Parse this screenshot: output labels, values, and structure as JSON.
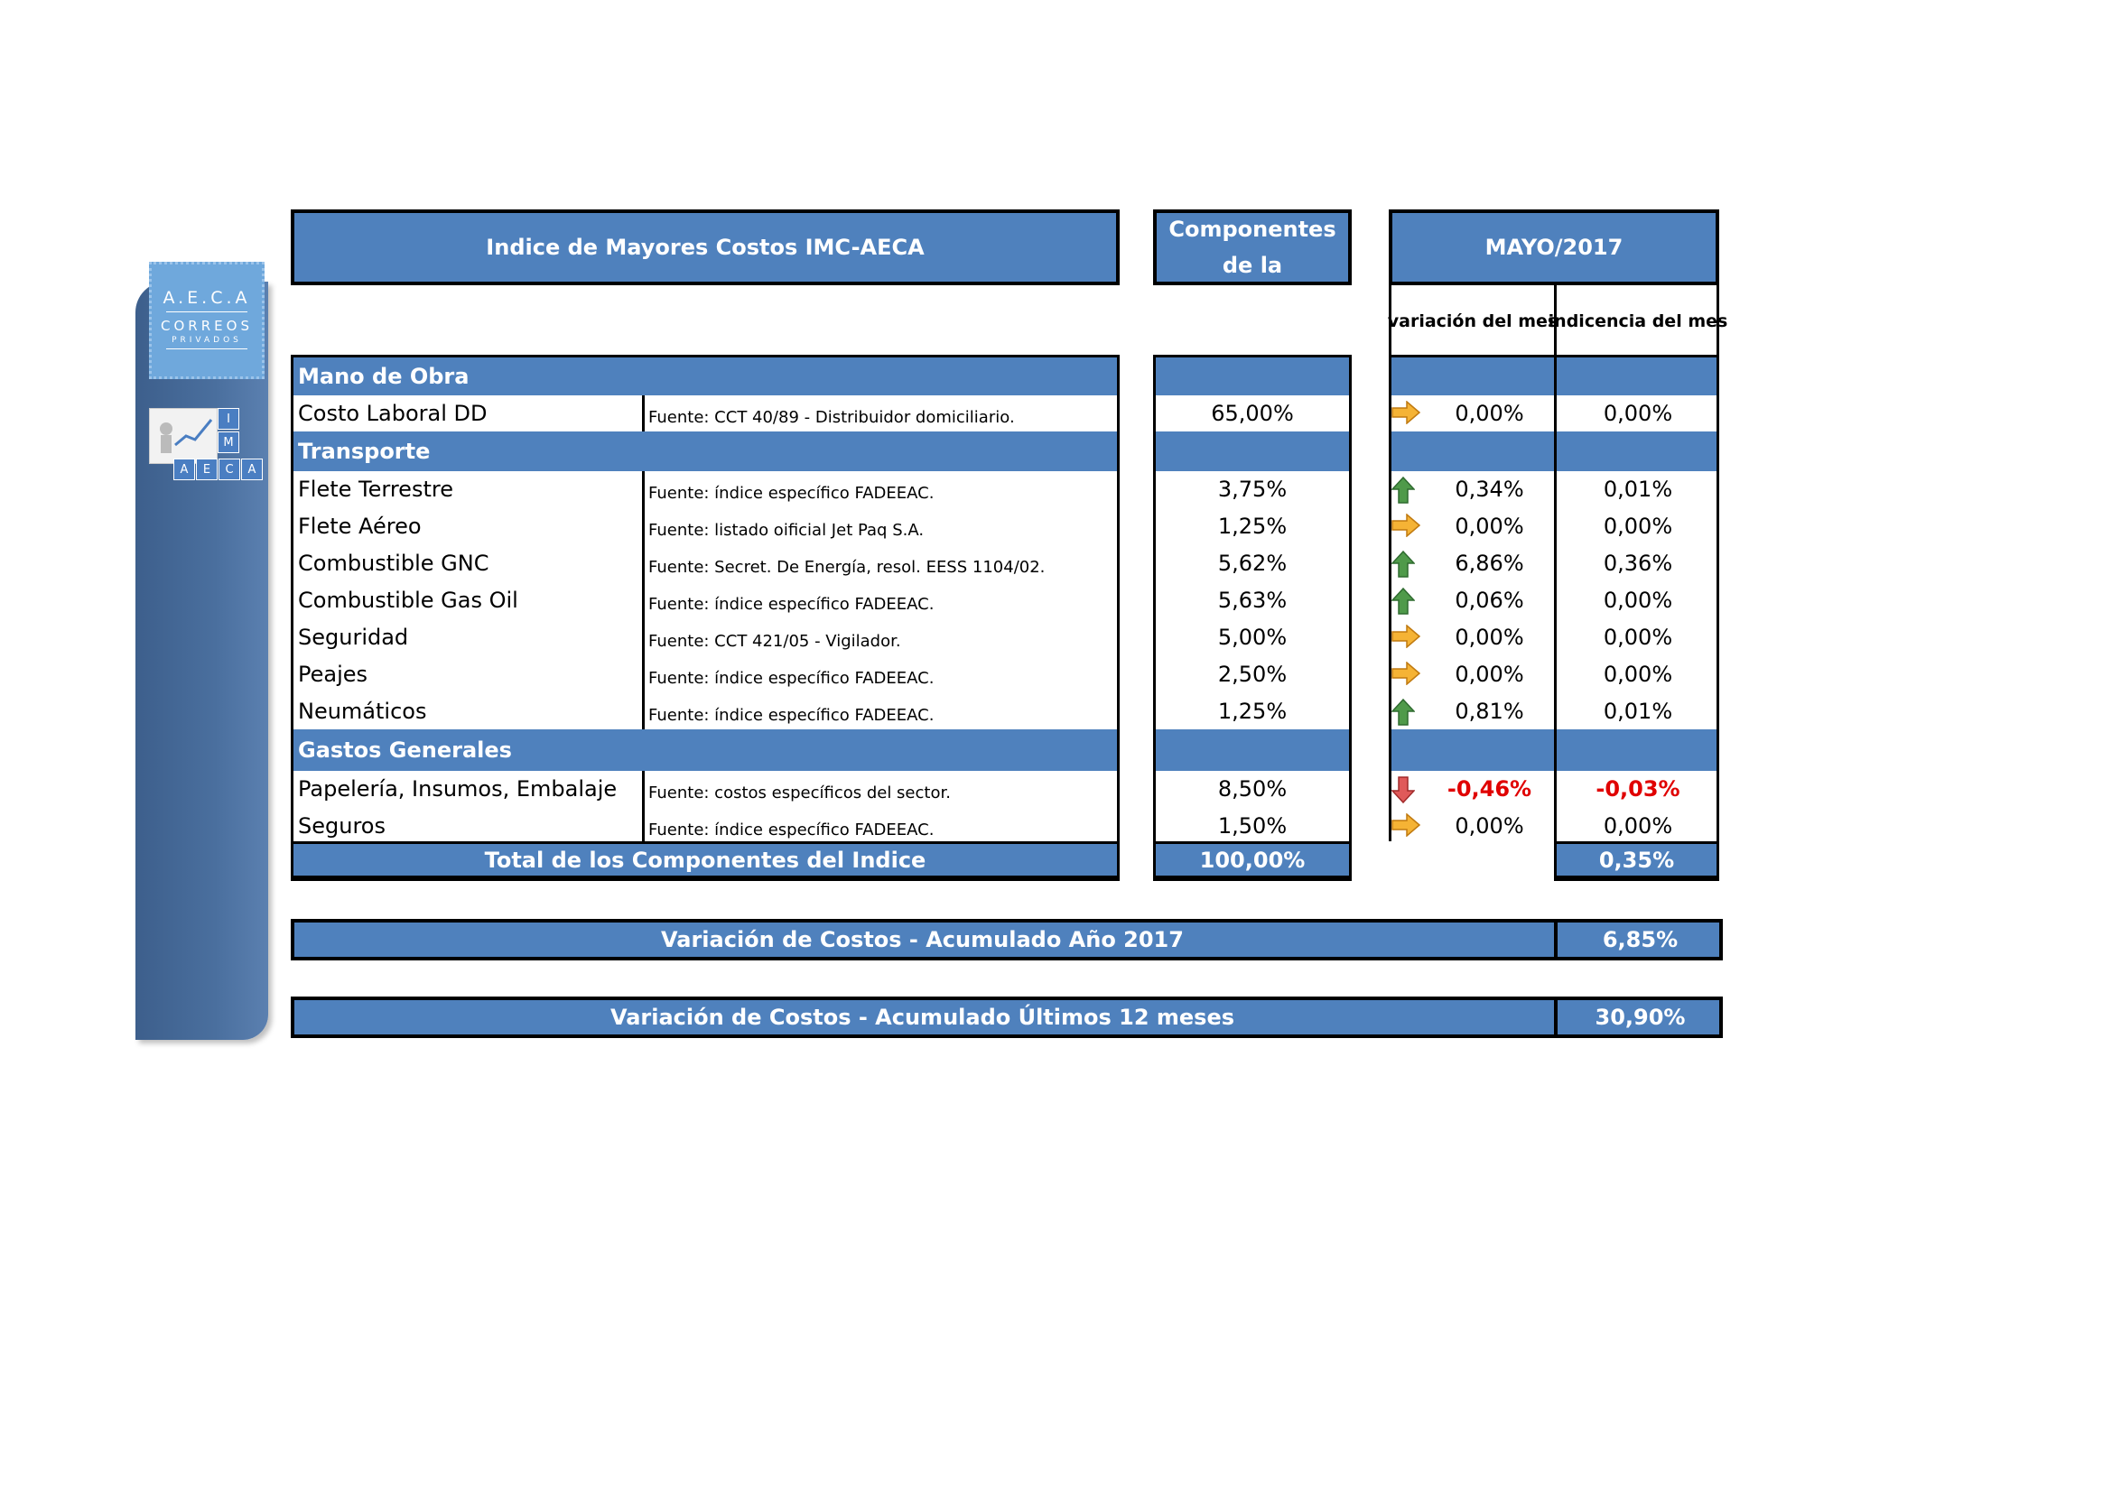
{
  "logo": {
    "line1": "A.E.C.A",
    "line2": "CORREOS",
    "line3": "PRIVADOS",
    "blocks": [
      "I",
      "M",
      "A",
      "E",
      "C",
      "A"
    ]
  },
  "header": {
    "title": "Indice de Mayores Costos  IMC-AECA",
    "components_label": "% Componentes de la Estructura",
    "period": "MAYO/2017",
    "col_variacion": "variación del mes",
    "col_indicencia": "indicencia del mes"
  },
  "categories": {
    "mano_obra": "Mano de Obra",
    "transporte": "Transporte",
    "gastos": "Gastos Generales"
  },
  "rows": [
    {
      "name": "Costo Laboral DD",
      "source": "Fuente: CCT 40/89 - Distribuidor domiciliario.",
      "pct": "65,00%",
      "trend": "flat",
      "variacion": "0,00%",
      "incidencia": "0,00%"
    },
    {
      "name": "Flete Terrestre",
      "source": "Fuente: índice específico FADEEAC.",
      "pct": "3,75%",
      "trend": "up",
      "variacion": "0,34%",
      "incidencia": "0,01%"
    },
    {
      "name": "Flete Aéreo",
      "source": "Fuente: listado oificial Jet Paq S.A.",
      "pct": "1,25%",
      "trend": "flat",
      "variacion": "0,00%",
      "incidencia": "0,00%"
    },
    {
      "name": "Combustible GNC",
      "source": "Fuente: Secret. De Energía, resol. EESS 1104/02.",
      "pct": "5,62%",
      "trend": "up",
      "variacion": "6,86%",
      "incidencia": "0,36%"
    },
    {
      "name": "Combustible Gas Oil",
      "source": "Fuente: índice específico FADEEAC.",
      "pct": "5,63%",
      "trend": "up",
      "variacion": "0,06%",
      "incidencia": "0,00%"
    },
    {
      "name": "Seguridad",
      "source": "Fuente: CCT 421/05 - Vigilador.",
      "pct": "5,00%",
      "trend": "flat",
      "variacion": "0,00%",
      "incidencia": "0,00%"
    },
    {
      "name": "Peajes",
      "source": "Fuente: índice específico FADEEAC.",
      "pct": "2,50%",
      "trend": "flat",
      "variacion": "0,00%",
      "incidencia": "0,00%"
    },
    {
      "name": "Neumáticos",
      "source": "Fuente: índice específico FADEEAC.",
      "pct": "1,25%",
      "trend": "up",
      "variacion": "0,81%",
      "incidencia": "0,01%"
    },
    {
      "name": "Papelería, Insumos, Embalaje",
      "source": "Fuente: costos específicos del sector.",
      "pct": "8,50%",
      "trend": "down",
      "variacion": "-0,46%",
      "incidencia": "-0,03%"
    },
    {
      "name": "Seguros",
      "source": "Fuente: índice específico FADEEAC.",
      "pct": "1,50%",
      "trend": "flat",
      "variacion": "0,00%",
      "incidencia": "0,00%"
    }
  ],
  "totals": {
    "label": "Total de los Componentes del Indice",
    "pct": "100,00%",
    "incidencia": "0,35%"
  },
  "summary": [
    {
      "label": "Variación de Costos - Acumulado Año 2017",
      "value": "6,85%"
    },
    {
      "label": "Variación de Costos - Acumulado Últimos 12 meses",
      "value": "30,90%"
    }
  ],
  "colors": {
    "header_blue": "#4f81bd",
    "up_arrow": "#4f9a4a",
    "flat_arrow": "#f5b335",
    "down_arrow": "#e05a5a",
    "negative_text": "#e00000"
  },
  "icons": {
    "up": "arrow-up-icon",
    "flat": "arrow-right-icon",
    "down": "arrow-down-icon"
  }
}
